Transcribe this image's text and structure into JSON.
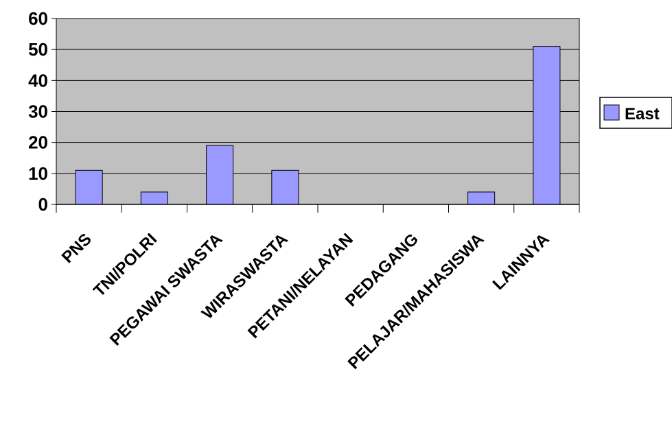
{
  "chart_data": {
    "type": "bar",
    "categories": [
      "PNS",
      "TNI/POLRI",
      "PEGAWAI SWASTA",
      "WIRASWASTA",
      "PETANI/NELAYAN",
      "PEDAGANG",
      "PELAJAR/MAHASISWA",
      "LAINNYA"
    ],
    "series": [
      {
        "name": "East",
        "values": [
          11,
          4,
          19,
          11,
          0,
          0,
          4,
          51
        ]
      }
    ],
    "ylim": [
      0,
      60
    ],
    "yticks": [
      "0",
      "10",
      "20",
      "30",
      "40",
      "50",
      "60"
    ],
    "grid": true,
    "legend_position": "right",
    "colors": {
      "plot_background": "#c0c0c0",
      "bar_fill": "#9999ff",
      "bar_stroke": "#000000",
      "grid": "#000000"
    }
  }
}
